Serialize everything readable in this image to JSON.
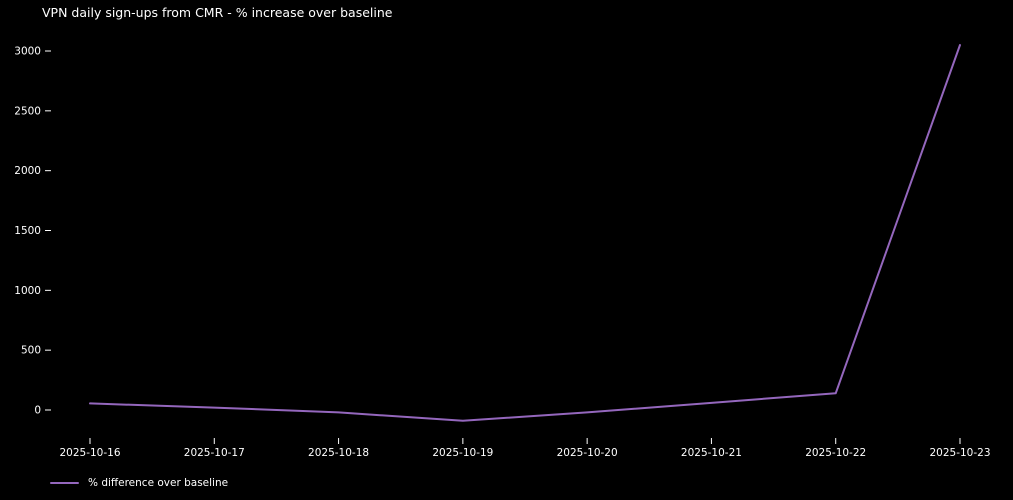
{
  "page": {
    "background": "#000000",
    "text_color": "#ffffff"
  },
  "chart_data": {
    "type": "line",
    "title": "VPN daily sign-ups from CMR - % increase over baseline",
    "categories": [
      "2025-10-16",
      "2025-10-17",
      "2025-10-18",
      "2025-10-19",
      "2025-10-20",
      "2025-10-21",
      "2025-10-22",
      "2025-10-23"
    ],
    "series": [
      {
        "name": "% difference over baseline",
        "values": [
          55,
          20,
          -20,
          -90,
          -20,
          60,
          140,
          3050
        ],
        "color": "#9467bd"
      }
    ],
    "xlabel": "",
    "ylabel": "",
    "yticks": [
      0,
      500,
      1000,
      1500,
      2000,
      2500,
      3000
    ],
    "ylim": [
      -250,
      3210
    ],
    "grid": false,
    "legend_position": "bottom-left",
    "background": "#000000",
    "tick_color": "#ffffff"
  }
}
